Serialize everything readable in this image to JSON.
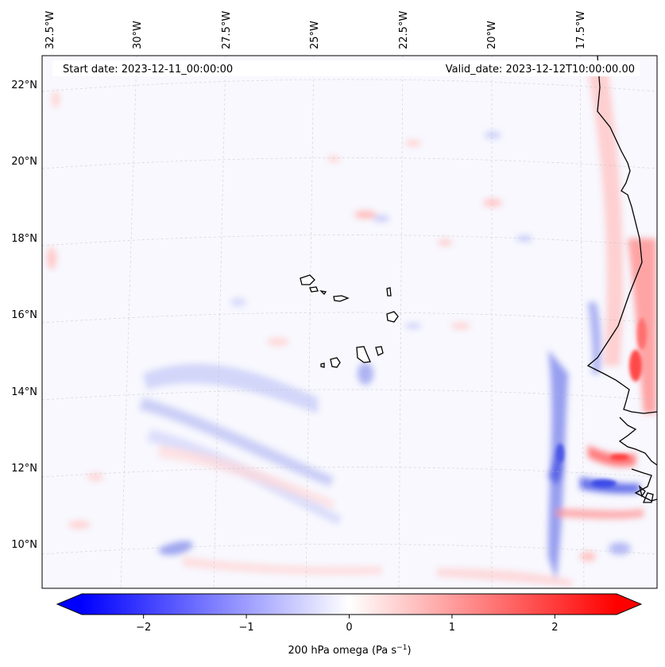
{
  "header": {
    "start_date": "Start date: 2023-12-11_00:00:00",
    "valid_date": "Valid_date: 2023-12-12T10:00:00.00"
  },
  "map": {
    "longitude_labels": [
      "32.5°W",
      "30°W",
      "27.5°W",
      "25°W",
      "22.5°W",
      "20°W",
      "17.5°W"
    ],
    "latitude_labels": [
      "22°N",
      "20°N",
      "18°N",
      "16°N",
      "14°N",
      "12°N",
      "10°N"
    ],
    "features": [
      "cape-verde-islands",
      "west-african-coastline"
    ]
  },
  "colorbar": {
    "ticks": [
      "−2",
      "−1",
      "0",
      "1",
      "2"
    ],
    "tick_values": [
      -2,
      -1,
      0,
      1,
      2
    ],
    "range": [
      -2.6,
      2.6
    ],
    "label_main": "200 hPa omega (Pa s",
    "label_exp": "−1",
    "label_end": ")",
    "colormap": "bwr",
    "colors": {
      "negative": "#0000ff",
      "zero": "#ffffff",
      "positive": "#ff0000"
    }
  }
}
